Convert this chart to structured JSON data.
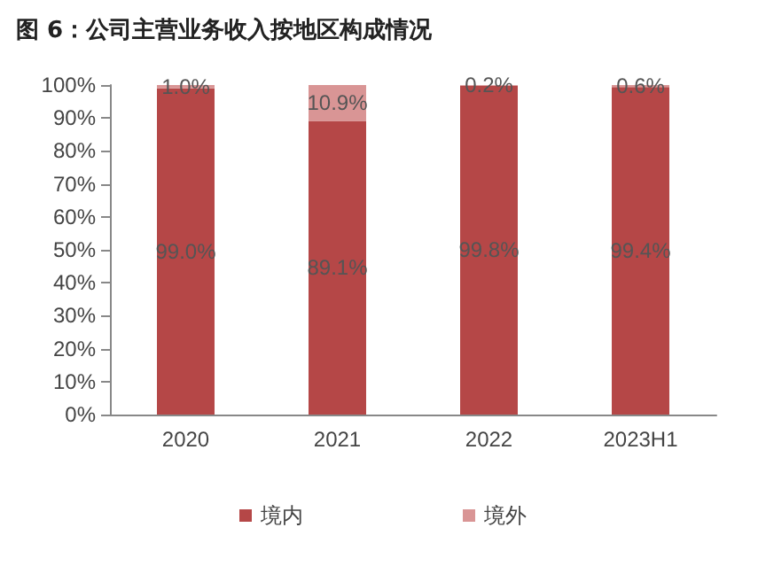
{
  "chart_data": {
    "type": "bar",
    "title": "图 6：公司主营业务收入按地区构成情况",
    "categories": [
      "2020",
      "2021",
      "2022",
      "2023H1"
    ],
    "stacked": true,
    "series": [
      {
        "name": "境内",
        "color": "#b54747",
        "values": [
          99.0,
          89.1,
          99.8,
          99.4
        ],
        "value_labels": [
          "99.0%",
          "89.1%",
          "99.8%",
          "99.4%"
        ]
      },
      {
        "name": "境外",
        "color": "#d99595",
        "values": [
          1.0,
          10.9,
          0.2,
          0.6
        ],
        "value_labels": [
          "1.0%",
          "10.9%",
          "0.2%",
          "0.6%"
        ]
      }
    ],
    "ylim": [
      0,
      100
    ],
    "yticks": [
      {
        "value": 0,
        "label": "0%"
      },
      {
        "value": 10,
        "label": "10%"
      },
      {
        "value": 20,
        "label": "20%"
      },
      {
        "value": 30,
        "label": "30%"
      },
      {
        "value": 40,
        "label": "40%"
      },
      {
        "value": 50,
        "label": "50%"
      },
      {
        "value": 60,
        "label": "60%"
      },
      {
        "value": 70,
        "label": "70%"
      },
      {
        "value": 80,
        "label": "80%"
      },
      {
        "value": 90,
        "label": "90%"
      },
      {
        "value": 100,
        "label": "100%"
      }
    ],
    "grid": false,
    "legend": "bottom"
  }
}
